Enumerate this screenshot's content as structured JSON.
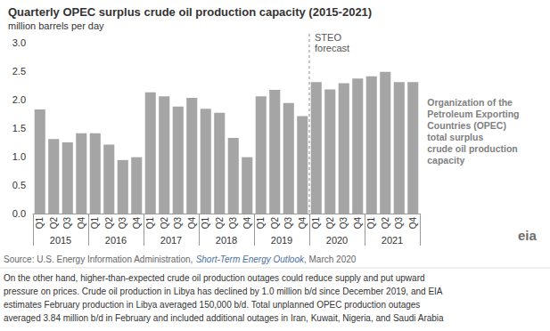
{
  "chart_data": {
    "type": "bar",
    "title": "Quarterly OPEC surplus crude oil production capacity (2015-2021)",
    "subtitle": "million barrels per day",
    "categories": [
      "Q1",
      "Q2",
      "Q3",
      "Q4",
      "Q1",
      "Q2",
      "Q3",
      "Q4",
      "Q1",
      "Q2",
      "Q3",
      "Q4",
      "Q1",
      "Q2",
      "Q3",
      "Q4",
      "Q1",
      "Q2",
      "Q3",
      "Q4",
      "Q1",
      "Q2",
      "Q3",
      "Q4",
      "Q1",
      "Q2",
      "Q3",
      "Q4"
    ],
    "groups": [
      "2015",
      "2016",
      "2017",
      "2018",
      "2019",
      "2020",
      "2021"
    ],
    "values": [
      1.83,
      1.31,
      1.25,
      1.41,
      1.41,
      1.21,
      0.94,
      0.99,
      2.13,
      2.06,
      1.88,
      2.03,
      1.84,
      1.77,
      1.33,
      0.99,
      2.06,
      2.17,
      1.94,
      1.71,
      2.31,
      2.18,
      2.29,
      2.37,
      2.41,
      2.49,
      2.31,
      2.31
    ],
    "color": "#a5a5a5",
    "ylim": [
      0,
      3
    ],
    "yticks": [
      {
        "value": 0,
        "label": "0.0"
      },
      0.5,
      {
        "value": 1,
        "label": "1.0"
      },
      1.5,
      {
        "value": 2,
        "label": "2.0"
      },
      2.5,
      {
        "value": 3,
        "label": "3.0"
      }
    ],
    "grid": false,
    "series_label": "Organization of the\nPetroleum Exporting\nCountries (OPEC)\ntotal surplus\ncrude oil production\ncapacity",
    "annotations": [
      {
        "text": "STEO\nforecast",
        "group": "2020"
      }
    ],
    "source": {
      "text": "Source: U.S. Energy Information Administration, Short-Term Energy Outlook, March 2020",
      "italic": "Short-Term Energy Outlook"
    },
    "footer_lines": [
      "On the other hand, higher-than-expected crude oil production outages could reduce supply and put upward",
      "pressure on prices. Crude oil production in Libya has declined by 1.0 million b/d since December 2019, and EIA",
      "estimates February production in Libya averaged 150,000 b/d. Total unplanned OPEC production outages",
      "averaged 3.84 million b/d in February and included additional outages in Iran, Kuwait, Nigeria, and Saudi Arabia"
    ],
    "logo": "eia"
  }
}
